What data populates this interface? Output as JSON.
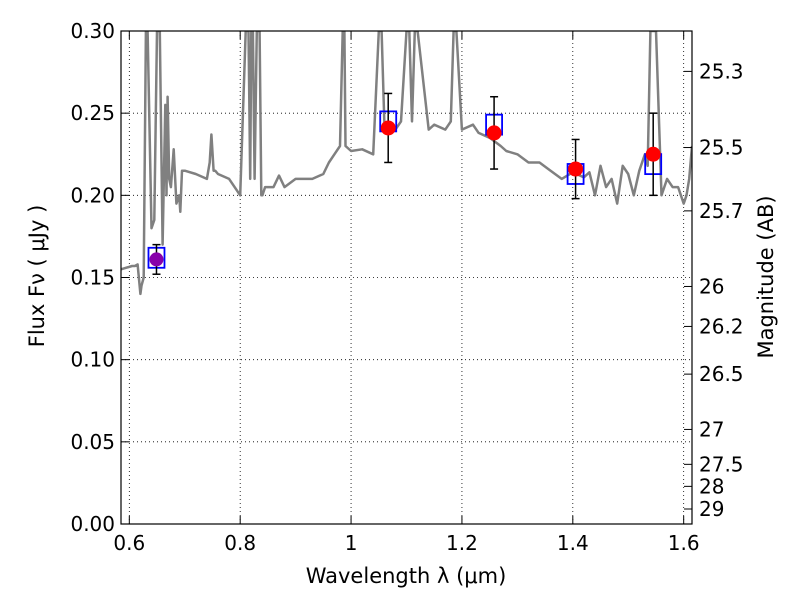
{
  "chart_data": {
    "type": "scatter",
    "title": "",
    "xlabel": "Wavelength  λ (μm)",
    "ylabel": "Flux  Fν  ( μJy )",
    "y2label": "Magnitude (AB)",
    "xlim": [
      0.585,
      1.615
    ],
    "ylim": [
      0.0,
      0.3
    ],
    "grid": true,
    "x_ticks": [
      0.6,
      0.8,
      1.0,
      1.2,
      1.4,
      1.6
    ],
    "x_tick_labels": [
      "0.6",
      "0.8",
      "1",
      "1.2",
      "1.4",
      "1.6"
    ],
    "y_ticks": [
      0.0,
      0.05,
      0.1,
      0.15,
      0.2,
      0.25,
      0.3
    ],
    "y_tick_labels": [
      "0.00",
      "0.05",
      "0.10",
      "0.15",
      "0.20",
      "0.25",
      "0.30"
    ],
    "mag_ticks": [
      25.3,
      25.5,
      25.7,
      26,
      26.2,
      26.5,
      27,
      27.5,
      28,
      29
    ],
    "mag_tick_labels": [
      "25.3",
      "25.5",
      "25.7",
      "26",
      "26.2",
      "26.5",
      "27",
      "27.5",
      "28",
      "29"
    ],
    "model_spectrum": {
      "color": "#808080",
      "x": [
        0.585,
        0.605,
        0.61,
        0.615,
        0.62,
        0.622,
        0.626,
        0.63,
        0.633,
        0.64,
        0.645,
        0.65,
        0.655,
        0.66,
        0.665,
        0.667,
        0.669,
        0.672,
        0.675,
        0.68,
        0.685,
        0.69,
        0.692,
        0.695,
        0.7,
        0.72,
        0.74,
        0.745,
        0.748,
        0.752,
        0.755,
        0.76,
        0.78,
        0.8,
        0.81,
        0.815,
        0.818,
        0.82,
        0.823,
        0.826,
        0.83,
        0.835,
        0.838,
        0.84,
        0.845,
        0.85,
        0.86,
        0.87,
        0.88,
        0.9,
        0.92,
        0.93,
        0.95,
        0.96,
        0.97,
        0.98,
        0.985,
        0.988,
        0.99,
        1.0,
        1.02,
        1.04,
        1.05,
        1.055,
        1.06,
        1.065,
        1.08,
        1.09,
        1.1,
        1.105,
        1.11,
        1.115,
        1.12,
        1.14,
        1.15,
        1.17,
        1.18,
        1.185,
        1.19,
        1.2,
        1.22,
        1.23,
        1.25,
        1.27,
        1.28,
        1.3,
        1.32,
        1.34,
        1.36,
        1.38,
        1.4,
        1.42,
        1.43,
        1.44,
        1.45,
        1.46,
        1.47,
        1.48,
        1.49,
        1.5,
        1.51,
        1.52,
        1.53,
        1.535,
        1.54,
        1.55,
        1.56,
        1.57,
        1.58,
        1.59,
        1.595,
        1.6,
        1.605,
        1.61,
        1.615
      ],
      "y": [
        0.155,
        0.157,
        0.157,
        0.158,
        0.14,
        0.145,
        0.15,
        0.3,
        0.3,
        0.18,
        0.185,
        0.3,
        0.3,
        0.17,
        0.255,
        0.2,
        0.26,
        0.21,
        0.205,
        0.228,
        0.195,
        0.2,
        0.19,
        0.215,
        0.215,
        0.213,
        0.21,
        0.22,
        0.237,
        0.215,
        0.215,
        0.213,
        0.21,
        0.2,
        0.3,
        0.3,
        0.21,
        0.3,
        0.3,
        0.21,
        0.3,
        0.3,
        0.2,
        0.2,
        0.205,
        0.205,
        0.205,
        0.212,
        0.205,
        0.21,
        0.21,
        0.21,
        0.213,
        0.22,
        0.225,
        0.23,
        0.3,
        0.3,
        0.23,
        0.227,
        0.228,
        0.225,
        0.3,
        0.3,
        0.245,
        0.24,
        0.24,
        0.245,
        0.3,
        0.3,
        0.245,
        0.3,
        0.3,
        0.24,
        0.243,
        0.24,
        0.245,
        0.3,
        0.3,
        0.24,
        0.243,
        0.238,
        0.235,
        0.23,
        0.227,
        0.225,
        0.22,
        0.22,
        0.215,
        0.21,
        0.214,
        0.211,
        0.214,
        0.2,
        0.218,
        0.205,
        0.21,
        0.195,
        0.218,
        0.213,
        0.2,
        0.215,
        0.225,
        0.218,
        0.3,
        0.3,
        0.2,
        0.21,
        0.205,
        0.205,
        0.2,
        0.195,
        0.2,
        0.21,
        0.23
      ]
    },
    "observed": {
      "color": "#ff0000",
      "x": [
        1.067,
        1.258,
        1.405,
        1.545
      ],
      "y": [
        0.241,
        0.238,
        0.216,
        0.225
      ],
      "yerr": [
        0.021,
        0.022,
        0.018,
        0.025
      ]
    },
    "observed_limit": {
      "color": "#8800aa",
      "x": [
        0.649
      ],
      "y": [
        0.161
      ],
      "yerr": [
        0.009
      ]
    },
    "model_photometry": {
      "color": "#0000ff",
      "x": [
        0.649,
        1.067,
        1.258,
        1.405,
        1.545
      ],
      "y": [
        0.162,
        0.245,
        0.243,
        0.213,
        0.219
      ]
    }
  }
}
